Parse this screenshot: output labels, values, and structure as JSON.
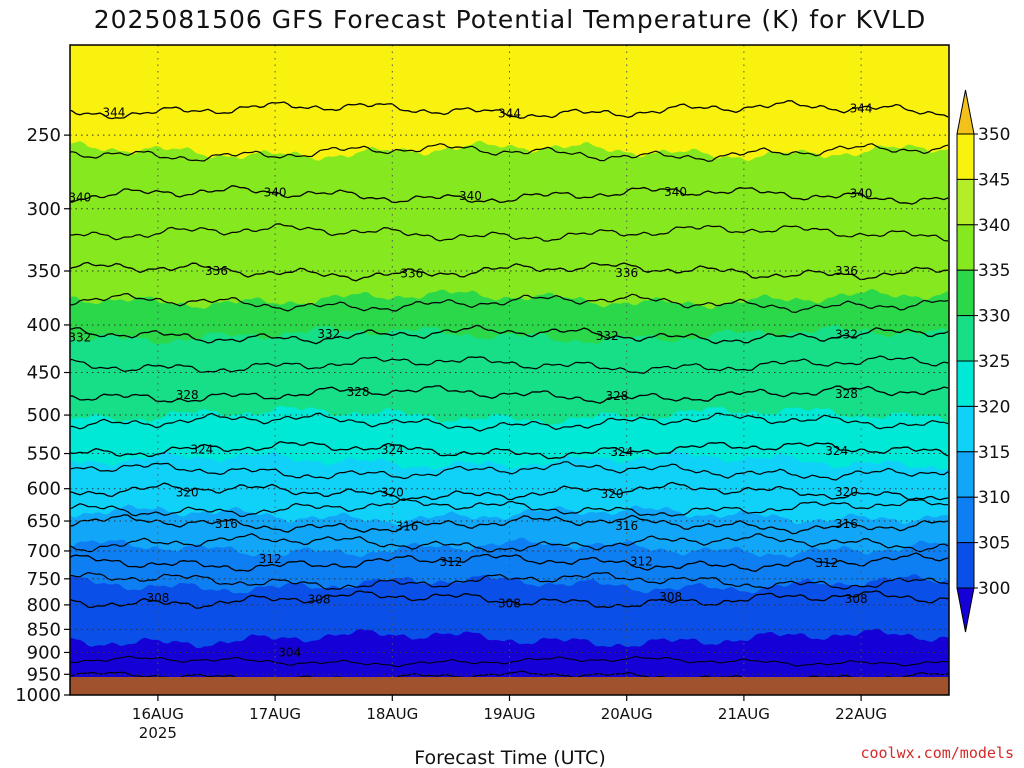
{
  "chart_data": {
    "type": "contour",
    "title": "2025081506 GFS Forecast Potential Temperature (K) for KVLD",
    "xlabel": "Forecast Time (UTC)",
    "ylabel": "",
    "credit": "coolwx.com/models",
    "y_axis": {
      "scale": "log",
      "reversed": true,
      "range": [
        1000,
        200
      ],
      "ticks": [
        "250",
        "300",
        "350",
        "400",
        "450",
        "500",
        "550",
        "600",
        "650",
        "700",
        "750",
        "800",
        "850",
        "900",
        "950",
        "1000"
      ]
    },
    "x_axis": {
      "range": [
        "2025-08-15T06",
        "2025-08-22T18"
      ],
      "ticks": [
        {
          "label": "16AUG",
          "sub": "2025",
          "t": "2025-08-16T00"
        },
        {
          "label": "17AUG",
          "sub": "",
          "t": "2025-08-17T00"
        },
        {
          "label": "18AUG",
          "sub": "",
          "t": "2025-08-18T00"
        },
        {
          "label": "19AUG",
          "sub": "",
          "t": "2025-08-19T00"
        },
        {
          "label": "20AUG",
          "sub": "",
          "t": "2025-08-20T00"
        },
        {
          "label": "21AUG",
          "sub": "",
          "t": "2025-08-21T00"
        },
        {
          "label": "22AUG",
          "sub": "",
          "t": "2025-08-22T00"
        }
      ]
    },
    "colorbar": {
      "levels": [
        "300",
        "305",
        "310",
        "315",
        "320",
        "325",
        "330",
        "335",
        "340",
        "345",
        "350"
      ],
      "colors": [
        "#1500d6",
        "#0a4fe8",
        "#0d7ff2",
        "#11a6f7",
        "#10d2f9",
        "#00e8d6",
        "#16df87",
        "#2bd84a",
        "#86e81f",
        "#b4ee28",
        "#f9f20f",
        "#f2c11b"
      ]
    },
    "contour_interval_K": 2,
    "isentropes": [
      {
        "theta": 344,
        "level_hpa": 235
      },
      {
        "theta": 340,
        "level_hpa": 290
      },
      {
        "theta": 336,
        "level_hpa": 350
      },
      {
        "theta": 332,
        "level_hpa": 410
      },
      {
        "theta": 328,
        "level_hpa": 475
      },
      {
        "theta": 324,
        "level_hpa": 545
      },
      {
        "theta": 320,
        "level_hpa": 605
      },
      {
        "theta": 316,
        "level_hpa": 655
      },
      {
        "theta": 312,
        "level_hpa": 720
      },
      {
        "theta": 308,
        "level_hpa": 790
      }
    ],
    "contour_labels": [
      {
        "text": "344",
        "t": "2025-08-15T15"
      },
      {
        "text": "344",
        "t": "2025-08-19T00"
      },
      {
        "text": "344",
        "t": "2025-08-22T00"
      },
      {
        "text": "340",
        "t": "2025-08-15T08"
      },
      {
        "text": "340",
        "t": "2025-08-17T00"
      },
      {
        "text": "340",
        "t": "2025-08-18T16"
      },
      {
        "text": "340",
        "t": "2025-08-20T10"
      },
      {
        "text": "340",
        "t": "2025-08-22T00"
      },
      {
        "text": "336",
        "t": "2025-08-16T12"
      },
      {
        "text": "336",
        "t": "2025-08-18T04"
      },
      {
        "text": "336",
        "t": "2025-08-20T00"
      },
      {
        "text": "336",
        "t": "2025-08-21T21"
      },
      {
        "text": "332",
        "t": "2025-08-15T08"
      },
      {
        "text": "332",
        "t": "2025-08-17T11"
      },
      {
        "text": "332",
        "t": "2025-08-19T20"
      },
      {
        "text": "332",
        "t": "2025-08-21T21"
      },
      {
        "text": "328",
        "t": "2025-08-16T06"
      },
      {
        "text": "328",
        "t": "2025-08-17T17"
      },
      {
        "text": "328",
        "t": "2025-08-19T22"
      },
      {
        "text": "328",
        "t": "2025-08-21T21"
      },
      {
        "text": "324",
        "t": "2025-08-16T09"
      },
      {
        "text": "324",
        "t": "2025-08-18T00"
      },
      {
        "text": "324",
        "t": "2025-08-19T23"
      },
      {
        "text": "324",
        "t": "2025-08-21T19"
      },
      {
        "text": "320",
        "t": "2025-08-16T06"
      },
      {
        "text": "320",
        "t": "2025-08-18T00"
      },
      {
        "text": "320",
        "t": "2025-08-19T21"
      },
      {
        "text": "320",
        "t": "2025-08-21T21"
      },
      {
        "text": "316",
        "t": "2025-08-16T14"
      },
      {
        "text": "316",
        "t": "2025-08-18T03"
      },
      {
        "text": "316",
        "t": "2025-08-20T00"
      },
      {
        "text": "316",
        "t": "2025-08-21T21"
      },
      {
        "text": "312",
        "t": "2025-08-16T23"
      },
      {
        "text": "312",
        "t": "2025-08-18T12"
      },
      {
        "text": "312",
        "t": "2025-08-20T03"
      },
      {
        "text": "312",
        "t": "2025-08-21T17"
      },
      {
        "text": "308",
        "t": "2025-08-16T00"
      },
      {
        "text": "308",
        "t": "2025-08-19T00"
      },
      {
        "text": "308",
        "t": "2025-08-20T09"
      },
      {
        "text": "308",
        "t": "2025-08-21T23"
      },
      {
        "text": "308",
        "t": "2025-08-17T09"
      },
      {
        "text": "304",
        "t": "2025-08-17T03"
      }
    ],
    "legend": "colorbar-right",
    "grid": true
  }
}
